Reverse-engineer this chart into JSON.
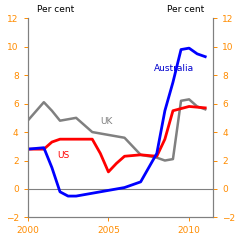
{
  "ylabel_left": "Per cent",
  "ylabel_right": "Per cent",
  "xlim": [
    2000,
    2011.5
  ],
  "ylim": [
    -2,
    12
  ],
  "yticks": [
    -2,
    0,
    2,
    4,
    6,
    8,
    10,
    12
  ],
  "xticks": [
    2000,
    2005,
    2010
  ],
  "australia": {
    "x": [
      2000,
      2001,
      2001.5,
      2002,
      2002.5,
      2003,
      2004,
      2005,
      2006,
      2007,
      2007.5,
      2008,
      2008.5,
      2009,
      2009.5,
      2010,
      2010.5,
      2011
    ],
    "y": [
      2.8,
      2.9,
      1.5,
      -0.2,
      -0.5,
      -0.5,
      -0.3,
      -0.1,
      0.1,
      0.5,
      1.5,
      2.5,
      5.5,
      7.5,
      9.8,
      9.9,
      9.5,
      9.3
    ],
    "color": "#0000ff",
    "label": "Australia",
    "linewidth": 2.0
  },
  "us": {
    "x": [
      2000,
      2001,
      2001.5,
      2002,
      2003,
      2004,
      2004.5,
      2005,
      2005.5,
      2006,
      2007,
      2008,
      2008.5,
      2009,
      2010,
      2011
    ],
    "y": [
      2.8,
      2.8,
      3.3,
      3.5,
      3.5,
      3.5,
      2.5,
      1.2,
      1.8,
      2.3,
      2.4,
      2.3,
      3.5,
      5.5,
      5.8,
      5.7
    ],
    "color": "#ff0000",
    "label": "US",
    "linewidth": 2.0
  },
  "uk": {
    "x": [
      2000,
      2001,
      2001.5,
      2002,
      2003,
      2004,
      2005,
      2006,
      2007,
      2008,
      2008.5,
      2009,
      2009.5,
      2010,
      2010.5,
      2011
    ],
    "y": [
      4.8,
      6.1,
      5.5,
      4.8,
      5.0,
      4.0,
      3.8,
      3.6,
      2.4,
      2.2,
      2.0,
      2.1,
      6.2,
      6.3,
      5.8,
      5.6
    ],
    "color": "#808080",
    "label": "UK",
    "linewidth": 1.8
  },
  "background_color": "#ffffff",
  "zero_line_color": "#808080",
  "tick_color_left": "#ff8c00",
  "tick_color_right": "#ff8c00",
  "label_color_australia": "#0000cd",
  "label_color_us": "#ff0000",
  "label_color_uk": "#808080",
  "axis_color": "#808080",
  "spine_color": "#808080"
}
